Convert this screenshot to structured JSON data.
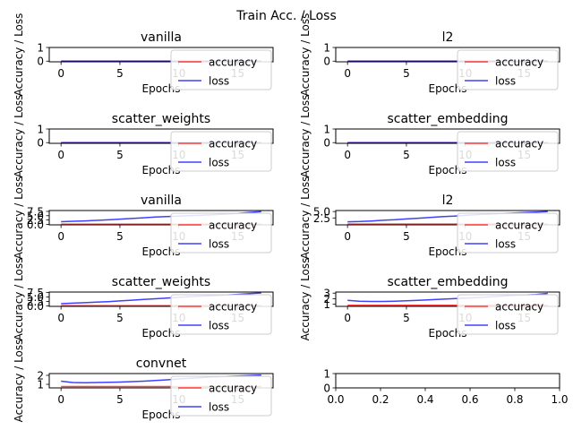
{
  "figure": {
    "title": "Train Acc. / Loss",
    "colors": {
      "accuracy": "#ff0000",
      "loss": "#0000ff"
    }
  },
  "chart_data": [
    {
      "type": "line",
      "title": "vanilla",
      "xlabel": "Epochs",
      "ylabel": "Accuracy / Loss",
      "xlim": [
        -1,
        18
      ],
      "ylim": [
        -0.05,
        1
      ],
      "xticks": [
        0,
        5,
        10,
        15
      ],
      "yticks": [
        0,
        1
      ],
      "ytick_labels": [
        "0",
        "1"
      ],
      "legend": "lower-right",
      "series": [
        {
          "name": "accuracy",
          "x": [
            0,
            1,
            2,
            3,
            4,
            5,
            6,
            7,
            8,
            9,
            10,
            11,
            12,
            13,
            14,
            15,
            16,
            17
          ],
          "y": [
            0,
            0,
            0,
            0,
            0,
            0,
            0,
            0,
            0,
            0,
            0,
            0,
            0,
            0,
            0,
            0,
            0,
            0
          ]
        },
        {
          "name": "loss",
          "x": [
            0,
            1,
            2,
            3,
            4,
            5,
            6,
            7,
            8,
            9,
            10,
            11,
            12,
            13,
            14,
            15,
            16,
            17
          ],
          "y": [
            0,
            0,
            0,
            0,
            0,
            0,
            0,
            0,
            0,
            0,
            0,
            0,
            0,
            0,
            0,
            0,
            0,
            0
          ]
        }
      ]
    },
    {
      "type": "line",
      "title": "l2",
      "xlabel": "Epochs",
      "ylabel": "Accuracy / Loss",
      "xlim": [
        -1,
        18
      ],
      "ylim": [
        -0.05,
        1
      ],
      "xticks": [
        0,
        5,
        10,
        15
      ],
      "yticks": [
        0,
        1
      ],
      "ytick_labels": [
        "0",
        "1"
      ],
      "legend": "lower-right",
      "series": [
        {
          "name": "accuracy",
          "x": [
            0,
            1,
            2,
            3,
            4,
            5,
            6,
            7,
            8,
            9,
            10,
            11,
            12,
            13,
            14,
            15,
            16,
            17
          ],
          "y": [
            0,
            0,
            0,
            0,
            0,
            0,
            0,
            0,
            0,
            0,
            0,
            0,
            0,
            0,
            0,
            0,
            0,
            0
          ]
        },
        {
          "name": "loss",
          "x": [
            0,
            1,
            2,
            3,
            4,
            5,
            6,
            7,
            8,
            9,
            10,
            11,
            12,
            13,
            14,
            15,
            16,
            17
          ],
          "y": [
            0,
            0,
            0,
            0,
            0,
            0,
            0,
            0,
            0,
            0,
            0,
            0,
            0,
            0,
            0,
            0,
            0,
            0
          ]
        }
      ]
    },
    {
      "type": "line",
      "title": "scatter_weights",
      "xlabel": "Epochs",
      "ylabel": "Accuracy / Loss",
      "xlim": [
        -1,
        18
      ],
      "ylim": [
        -0.05,
        1
      ],
      "xticks": [
        0,
        5,
        10,
        15
      ],
      "yticks": [
        0,
        1
      ],
      "ytick_labels": [
        "0",
        "1"
      ],
      "legend": "lower-right",
      "series": [
        {
          "name": "accuracy",
          "x": [
            0,
            1,
            2,
            3,
            4,
            5,
            6,
            7,
            8,
            9,
            10,
            11,
            12,
            13,
            14,
            15,
            16,
            17
          ],
          "y": [
            0,
            0,
            0,
            0,
            0,
            0,
            0,
            0,
            0,
            0,
            0,
            0,
            0,
            0,
            0,
            0,
            0,
            0
          ]
        },
        {
          "name": "loss",
          "x": [
            0,
            1,
            2,
            3,
            4,
            5,
            6,
            7,
            8,
            9,
            10,
            11,
            12,
            13,
            14,
            15,
            16,
            17
          ],
          "y": [
            0,
            0,
            0,
            0,
            0,
            0,
            0,
            0,
            0,
            0,
            0,
            0,
            0,
            0,
            0,
            0,
            0,
            0
          ]
        }
      ]
    },
    {
      "type": "line",
      "title": "scatter_embedding",
      "xlabel": "Epochs",
      "ylabel": "Accuracy / Loss",
      "xlim": [
        -1,
        18
      ],
      "ylim": [
        -0.05,
        1
      ],
      "xticks": [
        0,
        5,
        10,
        15
      ],
      "yticks": [
        0,
        1
      ],
      "ytick_labels": [
        "0",
        "1"
      ],
      "legend": "lower-right",
      "series": [
        {
          "name": "accuracy",
          "x": [
            0,
            1,
            2,
            3,
            4,
            5,
            6,
            7,
            8,
            9,
            10,
            11,
            12,
            13,
            14,
            15,
            16,
            17
          ],
          "y": [
            0,
            0,
            0,
            0,
            0,
            0,
            0,
            0,
            0,
            0,
            0,
            0,
            0,
            0,
            0,
            0,
            0,
            0
          ]
        },
        {
          "name": "loss",
          "x": [
            0,
            1,
            2,
            3,
            4,
            5,
            6,
            7,
            8,
            9,
            10,
            11,
            12,
            13,
            14,
            15,
            16,
            17
          ],
          "y": [
            0,
            0,
            0,
            0,
            0,
            0,
            0,
            0,
            0,
            0,
            0,
            0,
            0,
            0,
            0,
            0,
            0,
            0
          ]
        }
      ]
    },
    {
      "type": "line",
      "title": "vanilla",
      "xlabel": "Epochs",
      "ylabel": "Accuracy / Loss",
      "xlim": [
        -1,
        18
      ],
      "ylim": [
        -0.3,
        8.0
      ],
      "xticks": [
        0,
        5,
        10,
        15
      ],
      "yticks": [
        0,
        2.5,
        5,
        7.5
      ],
      "ytick_labels": [
        "0.0",
        "2.5",
        "5.0",
        "7.5"
      ],
      "legend": "lower-right",
      "series": [
        {
          "name": "accuracy",
          "x": [
            0,
            1,
            2,
            3,
            4,
            5,
            6,
            7,
            8,
            9,
            10,
            11,
            12,
            13,
            14,
            15,
            16,
            17
          ],
          "y": [
            0.1,
            0.1,
            0.1,
            0.1,
            0.1,
            0.1,
            0.1,
            0.1,
            0.1,
            0.1,
            0.1,
            0.1,
            0.1,
            0.1,
            0.1,
            0.1,
            0.1,
            0.1
          ]
        },
        {
          "name": "loss",
          "x": [
            0,
            1,
            2,
            3,
            4,
            5,
            6,
            7,
            8,
            9,
            10,
            11,
            12,
            13,
            14,
            15,
            16,
            17
          ],
          "y": [
            1.5,
            1.8,
            2.0,
            2.3,
            2.6,
            3.0,
            3.4,
            3.8,
            4.2,
            4.5,
            4.8,
            5.1,
            5.3,
            5.6,
            5.9,
            6.3,
            6.9,
            7.4
          ]
        }
      ]
    },
    {
      "type": "line",
      "title": "l2",
      "xlabel": "Epochs",
      "ylabel": "Accuracy / Loss",
      "xlim": [
        -1,
        18
      ],
      "ylim": [
        -0.2,
        5.4
      ],
      "xticks": [
        0,
        5,
        10,
        15
      ],
      "yticks": [
        2.5,
        5
      ],
      "ytick_labels": [
        "2.5",
        "5.0"
      ],
      "legend": "lower-right",
      "series": [
        {
          "name": "accuracy",
          "x": [
            0,
            1,
            2,
            3,
            4,
            5,
            6,
            7,
            8,
            9,
            10,
            11,
            12,
            13,
            14,
            15,
            16,
            17
          ],
          "y": [
            0.1,
            0.1,
            0.1,
            0.1,
            0.1,
            0.1,
            0.1,
            0.1,
            0.1,
            0.1,
            0.1,
            0.1,
            0.1,
            0.1,
            0.1,
            0.1,
            0.1,
            0.1
          ]
        },
        {
          "name": "loss",
          "x": [
            0,
            1,
            2,
            3,
            4,
            5,
            6,
            7,
            8,
            9,
            10,
            11,
            12,
            13,
            14,
            15,
            16,
            17
          ],
          "y": [
            1.0,
            1.1,
            1.3,
            1.6,
            1.8,
            2.1,
            2.4,
            2.7,
            3.0,
            3.2,
            3.5,
            3.8,
            4.0,
            4.2,
            4.4,
            4.6,
            4.8,
            5.0
          ]
        }
      ]
    },
    {
      "type": "line",
      "title": "scatter_weights",
      "xlabel": "Epochs",
      "ylabel": "Accuracy / Loss",
      "xlim": [
        -1,
        18
      ],
      "ylim": [
        -0.3,
        7.8
      ],
      "xticks": [
        0,
        5,
        10,
        15
      ],
      "yticks": [
        0,
        2.5,
        5,
        7.5
      ],
      "ytick_labels": [
        "0.0",
        "2.5",
        "5.0",
        "7.5"
      ],
      "legend": "lower-right",
      "series": [
        {
          "name": "accuracy",
          "x": [
            0,
            1,
            2,
            3,
            4,
            5,
            6,
            7,
            8,
            9,
            10,
            11,
            12,
            13,
            14,
            15,
            16,
            17
          ],
          "y": [
            0.1,
            0.1,
            0.1,
            0.1,
            0.1,
            0.1,
            0.1,
            0.1,
            0.1,
            0.1,
            0.1,
            0.1,
            0.1,
            0.1,
            0.1,
            0.1,
            0.1,
            0.1
          ]
        },
        {
          "name": "loss",
          "x": [
            0,
            1,
            2,
            3,
            4,
            5,
            6,
            7,
            8,
            9,
            10,
            11,
            12,
            13,
            14,
            15,
            16,
            17
          ],
          "y": [
            1.2,
            1.5,
            1.8,
            2.1,
            2.4,
            2.8,
            3.2,
            3.6,
            4.0,
            4.4,
            4.8,
            5.2,
            5.5,
            5.8,
            6.1,
            6.5,
            6.9,
            7.3
          ]
        }
      ]
    },
    {
      "type": "line",
      "title": "scatter_embedding",
      "xlabel": "Epochs",
      "ylabel": "Accuracy / Loss",
      "xlim": [
        -1,
        18
      ],
      "ylim": [
        0.6,
        3.2
      ],
      "xticks": [
        0,
        5,
        10,
        15
      ],
      "yticks": [
        1,
        2,
        3
      ],
      "ytick_labels": [
        "1",
        "2",
        "3"
      ],
      "legend": "lower-right",
      "series": [
        {
          "name": "accuracy",
          "x": [
            0,
            1,
            2,
            3,
            4,
            5,
            6,
            7,
            8,
            9,
            10,
            11,
            12,
            13,
            14,
            15,
            16,
            17
          ],
          "y": [
            0.8,
            0.8,
            0.8,
            0.8,
            0.8,
            0.8,
            0.8,
            0.8,
            0.8,
            0.8,
            0.8,
            0.8,
            0.8,
            0.8,
            0.8,
            0.8,
            0.8,
            0.8
          ]
        },
        {
          "name": "loss",
          "x": [
            0,
            1,
            2,
            3,
            4,
            5,
            6,
            7,
            8,
            9,
            10,
            11,
            12,
            13,
            14,
            15,
            16,
            17
          ],
          "y": [
            1.7,
            1.55,
            1.5,
            1.5,
            1.55,
            1.6,
            1.7,
            1.8,
            1.9,
            2.0,
            2.1,
            2.2,
            2.3,
            2.45,
            2.6,
            2.65,
            2.75,
            2.95
          ]
        }
      ]
    },
    {
      "type": "line",
      "title": "convnet",
      "xlabel": "Epochs",
      "ylabel": "Accuracy / Loss",
      "xlim": [
        -1,
        18
      ],
      "ylim": [
        0.6,
        2.2
      ],
      "xticks": [
        0,
        5,
        10,
        15
      ],
      "yticks": [
        1,
        2
      ],
      "ytick_labels": [
        "1",
        "2"
      ],
      "legend": "lower-right",
      "series": [
        {
          "name": "accuracy",
          "x": [
            0,
            1,
            2,
            3,
            4,
            5,
            6,
            7,
            8,
            9,
            10,
            11,
            12,
            13,
            14,
            15,
            16,
            17
          ],
          "y": [
            0.75,
            0.75,
            0.75,
            0.75,
            0.75,
            0.75,
            0.75,
            0.75,
            0.75,
            0.75,
            0.75,
            0.75,
            0.75,
            0.75,
            0.75,
            0.75,
            0.75,
            0.75
          ]
        },
        {
          "name": "loss",
          "x": [
            0,
            1,
            2,
            3,
            4,
            5,
            6,
            7,
            8,
            9,
            10,
            11,
            12,
            13,
            14,
            15,
            16,
            17
          ],
          "y": [
            1.35,
            1.2,
            1.18,
            1.2,
            1.22,
            1.25,
            1.3,
            1.35,
            1.42,
            1.5,
            1.6,
            1.68,
            1.75,
            1.82,
            1.88,
            1.93,
            1.98,
            2.02
          ]
        }
      ]
    },
    {
      "type": "line",
      "title": "",
      "xlabel": "",
      "ylabel": "",
      "xlim": [
        0,
        1
      ],
      "ylim": [
        0,
        1
      ],
      "xticks": [
        0,
        0.2,
        0.4,
        0.6,
        0.8,
        1.0
      ],
      "xtick_labels": [
        "0.0",
        "0.2",
        "0.4",
        "0.6",
        "0.8",
        "1.0"
      ],
      "yticks": [
        0,
        1
      ],
      "ytick_labels": [
        "0",
        "1"
      ],
      "legend": "none",
      "series": []
    }
  ]
}
